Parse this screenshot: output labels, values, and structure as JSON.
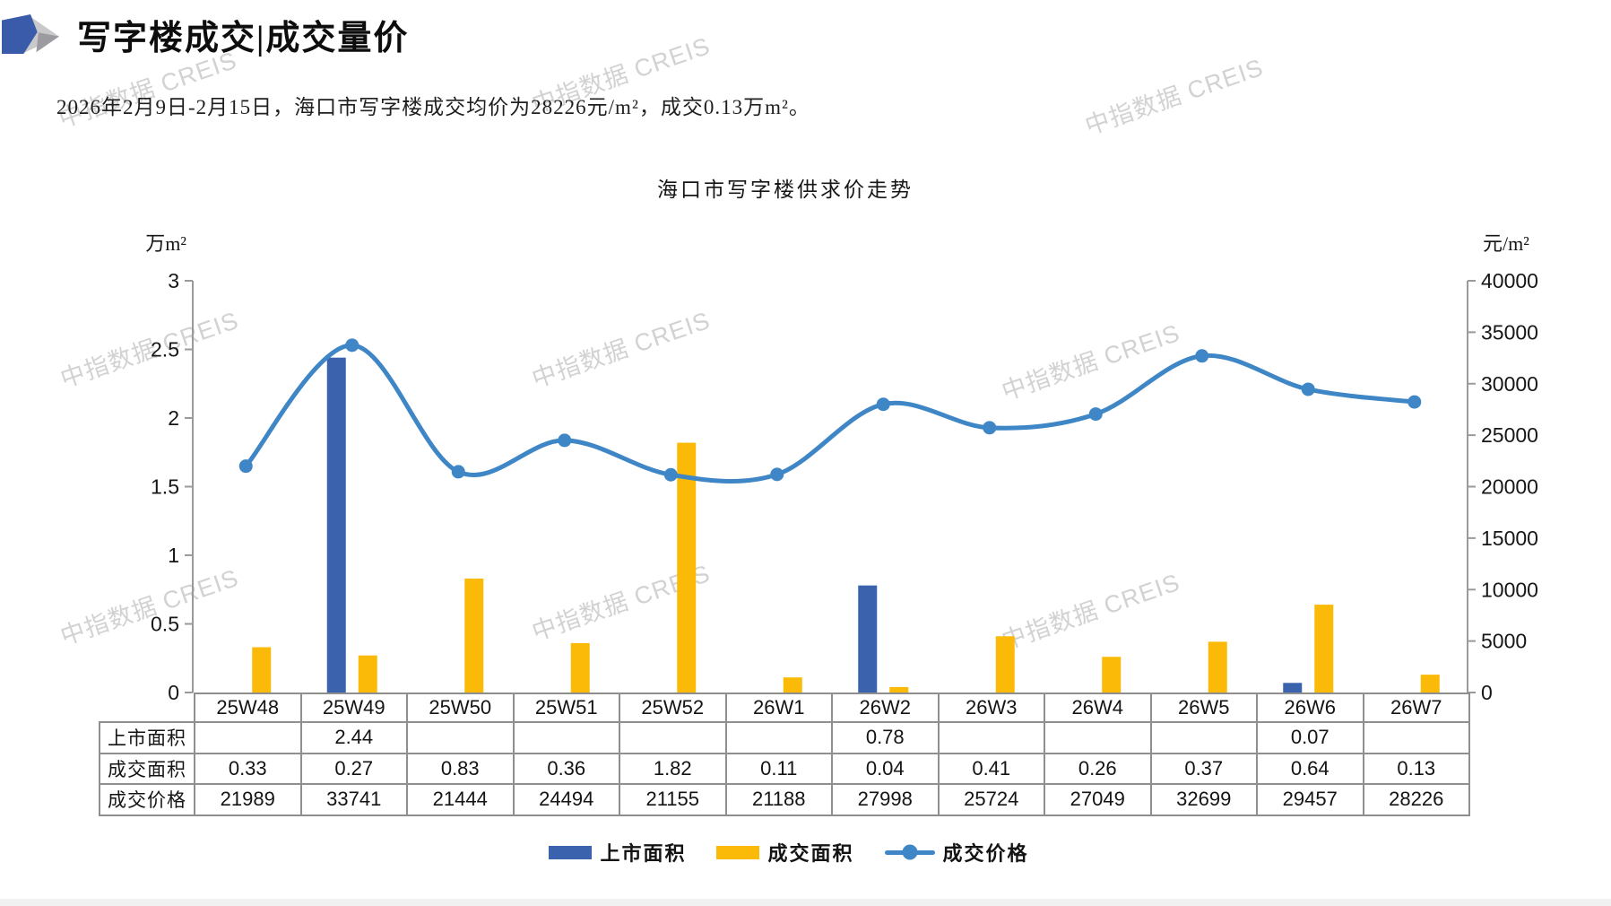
{
  "page": {
    "title": "写字楼成交|成交量价",
    "subtitle": "2026年2月9日-2月15日，海口市写字楼成交均价为28226元/m²，成交0.13万m²。",
    "watermark_text": "中指数据 CREIS"
  },
  "chart_data": {
    "type": "bar",
    "subtype": "grouped bars + smoothed line (dual axis)",
    "title": "海口市写字楼供求价走势",
    "categories": [
      "25W48",
      "25W49",
      "25W50",
      "25W51",
      "25W52",
      "26W1",
      "26W2",
      "26W3",
      "26W4",
      "26W5",
      "26W6",
      "26W7"
    ],
    "series": [
      {
        "name": "上市面积",
        "type": "bar",
        "axis": "left",
        "color": "#3A62AD",
        "values": [
          null,
          2.44,
          null,
          null,
          null,
          null,
          0.78,
          null,
          null,
          null,
          0.07,
          null
        ]
      },
      {
        "name": "成交面积",
        "type": "bar",
        "axis": "left",
        "color": "#FBBA07",
        "values": [
          0.33,
          0.27,
          0.83,
          0.36,
          1.82,
          0.11,
          0.04,
          0.41,
          0.26,
          0.37,
          0.64,
          0.13
        ]
      },
      {
        "name": "成交价格",
        "type": "line",
        "axis": "right",
        "color": "#3E86C6",
        "values": [
          21989,
          33741,
          21444,
          24494,
          21155,
          21188,
          27998,
          25724,
          27049,
          32699,
          29457,
          28226
        ]
      }
    ],
    "left_axis": {
      "unit": "万m²",
      "min": 0,
      "max": 3,
      "step": 0.5,
      "labels": [
        "0",
        "0.5",
        "1",
        "1.5",
        "2",
        "2.5",
        "3"
      ]
    },
    "right_axis": {
      "unit": "元/m²",
      "min": 0,
      "max": 40000,
      "step": 5000,
      "labels": [
        "0",
        "5000",
        "10000",
        "15000",
        "20000",
        "25000",
        "30000",
        "35000",
        "40000"
      ]
    },
    "legend": [
      "上市面积",
      "成交面积",
      "成交价格"
    ],
    "legend_position": "bottom",
    "grid": false,
    "axis_color": "#9a9a9a"
  },
  "table": {
    "corner_label": "",
    "col_headers": [
      "25W48",
      "25W49",
      "25W50",
      "25W51",
      "25W52",
      "26W1",
      "26W2",
      "26W3",
      "26W4",
      "26W5",
      "26W6",
      "26W7"
    ],
    "rows": [
      {
        "label": "上市面积",
        "values": [
          "",
          "2.44",
          "",
          "",
          "",
          "",
          "0.78",
          "",
          "",
          "",
          "0.07",
          ""
        ]
      },
      {
        "label": "成交面积",
        "values": [
          "0.33",
          "0.27",
          "0.83",
          "0.36",
          "1.82",
          "0.11",
          "0.04",
          "0.41",
          "0.26",
          "0.37",
          "0.64",
          "0.13"
        ]
      },
      {
        "label": "成交价格",
        "values": [
          "21989",
          "33741",
          "21444",
          "24494",
          "21155",
          "21188",
          "27998",
          "25724",
          "27049",
          "32699",
          "29457",
          "28226"
        ]
      }
    ]
  }
}
